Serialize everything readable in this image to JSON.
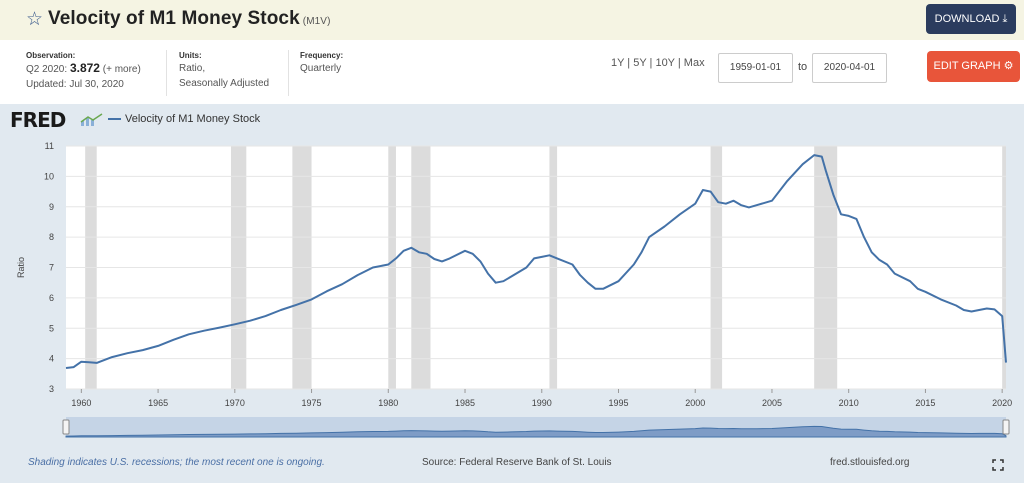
{
  "header": {
    "title": "Velocity of M1 Money Stock",
    "series_id": "(M1V)",
    "download_label": "DOWNLOAD"
  },
  "meta": {
    "observation_label": "Observation:",
    "observation_period": "Q2 2020:",
    "observation_value": "3.872",
    "observation_more": "(+ more)",
    "updated": "Updated: Jul 30, 2020",
    "units_label": "Units:",
    "units_line1": "Ratio,",
    "units_line2": "Seasonally Adjusted",
    "frequency_label": "Frequency:",
    "frequency_value": "Quarterly"
  },
  "controls": {
    "ranges": "1Y | 5Y | 10Y | Max",
    "start_date": "1959-01-01",
    "to_label": "to",
    "end_date": "2020-04-01",
    "edit_graph_label": "EDIT GRAPH"
  },
  "chart_brand": "FRED",
  "footer": {
    "shading_note": "Shading indicates U.S. recessions; the most recent one is ongoing.",
    "source": "Source: Federal Reserve Bank of St. Louis",
    "site": "fred.stlouisfed.org"
  },
  "colors": {
    "series": "#4472a8",
    "recession": "#dcdcdc",
    "accent_dark": "#2b3c5e",
    "accent_orange": "#e8553a"
  },
  "icons": {
    "favorite": "star-outline-icon",
    "download": "download-icon",
    "edit": "gear-icon",
    "expand": "fullscreen-icon"
  },
  "chart_data": {
    "type": "line",
    "title": "",
    "ylabel": "Ratio",
    "xlabel": "",
    "xlim": [
      1959.0,
      2020.25
    ],
    "ylim": [
      3,
      11
    ],
    "x_ticks": [
      1960,
      1965,
      1970,
      1975,
      1980,
      1985,
      1990,
      1995,
      2000,
      2005,
      2010,
      2015,
      2020
    ],
    "y_ticks": [
      3,
      4,
      5,
      6,
      7,
      8,
      9,
      10,
      11
    ],
    "grid": true,
    "legend_placement": "top-left",
    "recession_shading": [
      [
        1960.25,
        1961.0
      ],
      [
        1969.75,
        1970.75
      ],
      [
        1973.75,
        1975.0
      ],
      [
        1980.0,
        1980.5
      ],
      [
        1981.5,
        1982.75
      ],
      [
        1990.5,
        1991.0
      ],
      [
        2001.0,
        2001.75
      ],
      [
        2007.75,
        2009.25
      ],
      [
        2020.0,
        2020.25
      ]
    ],
    "series": [
      {
        "name": "Velocity of M1 Money Stock",
        "points": [
          [
            1959.0,
            3.69
          ],
          [
            1959.5,
            3.72
          ],
          [
            1960.0,
            3.9
          ],
          [
            1960.5,
            3.88
          ],
          [
            1961.0,
            3.86
          ],
          [
            1962.0,
            4.05
          ],
          [
            1963.0,
            4.18
          ],
          [
            1964.0,
            4.28
          ],
          [
            1965.0,
            4.42
          ],
          [
            1966.0,
            4.62
          ],
          [
            1967.0,
            4.8
          ],
          [
            1968.0,
            4.92
          ],
          [
            1969.0,
            5.02
          ],
          [
            1970.0,
            5.13
          ],
          [
            1971.0,
            5.25
          ],
          [
            1972.0,
            5.4
          ],
          [
            1973.0,
            5.6
          ],
          [
            1974.0,
            5.77
          ],
          [
            1975.0,
            5.95
          ],
          [
            1976.0,
            6.22
          ],
          [
            1977.0,
            6.45
          ],
          [
            1978.0,
            6.75
          ],
          [
            1979.0,
            7.0
          ],
          [
            1980.0,
            7.1
          ],
          [
            1980.5,
            7.3
          ],
          [
            1981.0,
            7.55
          ],
          [
            1981.5,
            7.65
          ],
          [
            1982.0,
            7.5
          ],
          [
            1982.5,
            7.45
          ],
          [
            1983.0,
            7.28
          ],
          [
            1983.5,
            7.2
          ],
          [
            1984.0,
            7.3
          ],
          [
            1985.0,
            7.55
          ],
          [
            1985.5,
            7.45
          ],
          [
            1986.0,
            7.2
          ],
          [
            1986.5,
            6.8
          ],
          [
            1987.0,
            6.5
          ],
          [
            1987.5,
            6.55
          ],
          [
            1988.0,
            6.7
          ],
          [
            1989.0,
            7.0
          ],
          [
            1989.5,
            7.3
          ],
          [
            1990.0,
            7.35
          ],
          [
            1990.5,
            7.4
          ],
          [
            1991.0,
            7.3
          ],
          [
            1992.0,
            7.1
          ],
          [
            1992.5,
            6.75
          ],
          [
            1993.0,
            6.5
          ],
          [
            1993.5,
            6.3
          ],
          [
            1994.0,
            6.3
          ],
          [
            1995.0,
            6.55
          ],
          [
            1996.0,
            7.1
          ],
          [
            1996.5,
            7.5
          ],
          [
            1997.0,
            8.0
          ],
          [
            1998.0,
            8.35
          ],
          [
            1999.0,
            8.75
          ],
          [
            2000.0,
            9.1
          ],
          [
            2000.5,
            9.55
          ],
          [
            2001.0,
            9.5
          ],
          [
            2001.5,
            9.15
          ],
          [
            2002.0,
            9.1
          ],
          [
            2002.5,
            9.2
          ],
          [
            2003.0,
            9.05
          ],
          [
            2003.5,
            8.98
          ],
          [
            2004.0,
            9.05
          ],
          [
            2005.0,
            9.2
          ],
          [
            2006.0,
            9.85
          ],
          [
            2007.0,
            10.4
          ],
          [
            2007.75,
            10.7
          ],
          [
            2008.25,
            10.65
          ],
          [
            2008.5,
            10.2
          ],
          [
            2009.0,
            9.4
          ],
          [
            2009.5,
            8.75
          ],
          [
            2010.0,
            8.7
          ],
          [
            2010.5,
            8.6
          ],
          [
            2011.0,
            8.0
          ],
          [
            2011.5,
            7.5
          ],
          [
            2012.0,
            7.25
          ],
          [
            2012.5,
            7.1
          ],
          [
            2013.0,
            6.8
          ],
          [
            2014.0,
            6.55
          ],
          [
            2014.5,
            6.3
          ],
          [
            2015.0,
            6.2
          ],
          [
            2016.0,
            5.95
          ],
          [
            2017.0,
            5.75
          ],
          [
            2017.5,
            5.6
          ],
          [
            2018.0,
            5.55
          ],
          [
            2018.5,
            5.6
          ],
          [
            2019.0,
            5.65
          ],
          [
            2019.5,
            5.62
          ],
          [
            2020.0,
            5.4
          ],
          [
            2020.25,
            3.87
          ]
        ]
      }
    ]
  }
}
